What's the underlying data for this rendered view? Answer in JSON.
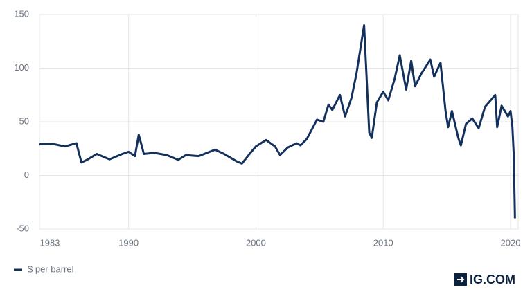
{
  "chart_data": {
    "type": "line",
    "x": [
      1983,
      1984,
      1985,
      1985.9,
      1986.3,
      1986.8,
      1987.5,
      1988.5,
      1989.5,
      1990.0,
      1990.5,
      1990.8,
      1991.2,
      1992,
      1993,
      1993.9,
      1994.5,
      1995.5,
      1996.8,
      1997.5,
      1998.5,
      1998.9,
      1999.5,
      2000,
      2000.8,
      2001.5,
      2001.9,
      2002.5,
      2003.2,
      2003.5,
      2004,
      2004.8,
      2005.3,
      2005.7,
      2006,
      2006.6,
      2007.0,
      2007.5,
      2007.9,
      2008.5,
      2008.9,
      2009.1,
      2009.5,
      2010,
      2010.4,
      2010.9,
      2011.3,
      2011.8,
      2012.2,
      2012.5,
      2013,
      2013.7,
      2014,
      2014.5,
      2014.9,
      2015.1,
      2015.4,
      2015.9,
      2016.1,
      2016.5,
      2017,
      2017.5,
      2018,
      2018.8,
      2018.95,
      2019.3,
      2019.8,
      2020.0,
      2020.15,
      2020.25,
      2020.35
    ],
    "series": [
      {
        "name": "$ per barrel",
        "color": "#13315c",
        "values": [
          29,
          29.5,
          27,
          30,
          12,
          15,
          20,
          15,
          20,
          22,
          18,
          38,
          20,
          21,
          19,
          14.5,
          19,
          18,
          24,
          20,
          13,
          11,
          20,
          27,
          33,
          27,
          19,
          26,
          30,
          28,
          34,
          52,
          50,
          66,
          61,
          75,
          55,
          72,
          95,
          140,
          40,
          35,
          68,
          78,
          70,
          90,
          112,
          80,
          107,
          83,
          95,
          108,
          92,
          105,
          60,
          45,
          60,
          35,
          28,
          48,
          53,
          44,
          64,
          75,
          45,
          65,
          55,
          60,
          45,
          20,
          -40
        ]
      }
    ],
    "xlim": [
      1983,
      2020.6
    ],
    "xticks": [
      1983,
      1990,
      2000,
      2010,
      2020
    ],
    "ylim": [
      -50,
      150
    ],
    "yticks": [
      -50,
      0,
      50,
      100,
      150
    ],
    "grid": true,
    "logo": "IG.COM"
  }
}
